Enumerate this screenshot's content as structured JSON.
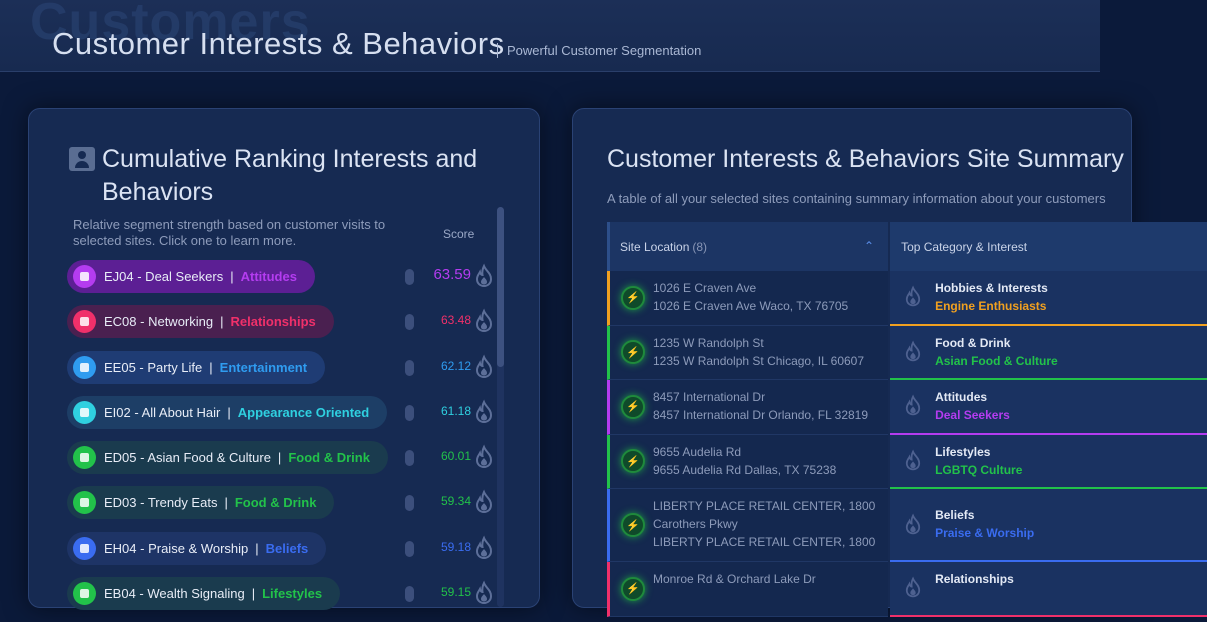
{
  "header": {
    "ghost_text": "Customers",
    "title": "Customer Interests & Behaviors",
    "subtitle": "Powerful Customer Segmentation"
  },
  "left_panel": {
    "title": "Cumulative Ranking Interests and Behaviors",
    "description": "Relative segment strength based on customer visits to selected sites. Click one to learn more.",
    "score_header": "Score",
    "items": [
      {
        "code": "EJ04 - Deal Seekers",
        "category": "Attitudes",
        "score": "63.59",
        "color": "#b43cf0",
        "bg": "#5c1f94"
      },
      {
        "code": "EC08 - Networking",
        "category": "Relationships",
        "score": "63.48",
        "color": "#f0306a",
        "bg": "#4a2050"
      },
      {
        "code": "EE05 - Party Life",
        "category": "Entertainment",
        "score": "62.12",
        "color": "#2f9cf0",
        "bg": "#1f3c74"
      },
      {
        "code": "EI02 - All About Hair",
        "category": "Appearance Oriented",
        "score": "61.18",
        "color": "#2fd0e0",
        "bg": "#1d3e66"
      },
      {
        "code": "ED05 - Asian Food & Culture",
        "category": "Food & Drink",
        "score": "60.01",
        "color": "#22c24a",
        "bg": "#1a3b4e"
      },
      {
        "code": "ED03 - Trendy Eats",
        "category": "Food & Drink",
        "score": "59.34",
        "color": "#22c24a",
        "bg": "#1a3b4e"
      },
      {
        "code": "EH04 - Praise & Worship",
        "category": "Beliefs",
        "score": "59.18",
        "color": "#3a6cf0",
        "bg": "#1e3466"
      },
      {
        "code": "EB04 - Wealth Signaling",
        "category": "Lifestyles",
        "score": "59.15",
        "color": "#22c24a",
        "bg": "#1a3b4e"
      }
    ]
  },
  "right_panel": {
    "title": "Customer Interests & Behaviors Site Summary",
    "description": "A table of all your selected sites containing summary information about your customers",
    "col_location": "Site Location",
    "col_location_count": "(8)",
    "col_category": "Top Category & Interest",
    "rows": [
      {
        "line1": "1026 E Craven Ave",
        "line2": "1026 E Craven Ave Waco, TX 76705",
        "category": "Hobbies & Interests",
        "interest": "Engine Enthusiasts",
        "color": "#f0a020",
        "tall": false
      },
      {
        "line1": "1235 W Randolph St",
        "line2": "1235 W Randolph St Chicago, IL 60607",
        "category": "Food & Drink",
        "interest": "Asian Food & Culture",
        "color": "#22c24a",
        "tall": false
      },
      {
        "line1": "8457 International Dr",
        "line2": "8457 International Dr Orlando, FL 32819",
        "category": "Attitudes",
        "interest": "Deal Seekers",
        "color": "#b43cf0",
        "tall": false
      },
      {
        "line1": "9655 Audelia Rd",
        "line2": "9655 Audelia Rd Dallas, TX 75238",
        "category": "Lifestyles",
        "interest": "LGBTQ Culture",
        "color": "#22c24a",
        "tall": false
      },
      {
        "line1": "LIBERTY PLACE RETAIL CENTER, 1800 Carothers Pkwy",
        "line2": "LIBERTY PLACE RETAIL CENTER, 1800 ...",
        "category": "Beliefs",
        "interest": "Praise & Worship",
        "color": "#3a6cf0",
        "tall": true
      },
      {
        "line1": "Monroe Rd & Orchard Lake Dr",
        "line2": "",
        "category": "Relationships",
        "interest": "",
        "color": "#f0306a",
        "tall": false
      }
    ]
  },
  "icons": {
    "person": "person-card-icon",
    "flame": "flame-icon",
    "bolt": "lightning-icon",
    "sort": "chevron-up-icon"
  }
}
